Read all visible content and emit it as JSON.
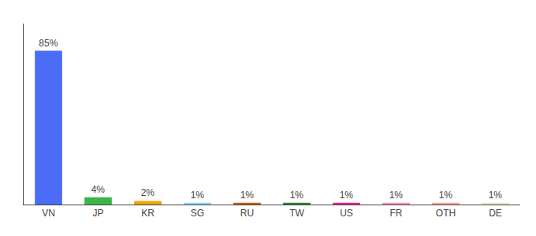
{
  "chart_data": {
    "type": "bar",
    "categories": [
      "VN",
      "JP",
      "KR",
      "SG",
      "RU",
      "TW",
      "US",
      "FR",
      "OTH",
      "DE"
    ],
    "values": [
      85,
      4,
      2,
      1,
      1,
      1,
      1,
      1,
      1,
      1
    ],
    "value_labels": [
      "85%",
      "4%",
      "2%",
      "1%",
      "1%",
      "1%",
      "1%",
      "1%",
      "1%",
      "1%"
    ],
    "colors": [
      "#4a6cf7",
      "#3cb44b",
      "#f0a500",
      "#85d4f5",
      "#c85a00",
      "#2e7d2e",
      "#e91e8c",
      "#f48fb1",
      "#f4a090",
      "#e8e8c8"
    ],
    "ylim": [
      0,
      100
    ],
    "data_labels": true,
    "tick_labels": "x",
    "grid": false
  }
}
